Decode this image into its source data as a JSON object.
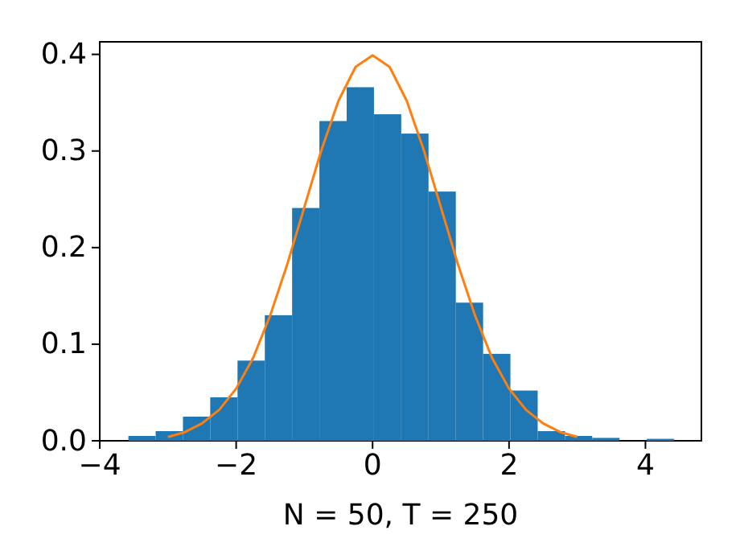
{
  "chart_data": {
    "type": "histogram",
    "xlabel": "N = 50, T = 250",
    "bins": [
      -3.58,
      -3.18,
      -2.78,
      -2.38,
      -1.98,
      -1.58,
      -1.18,
      -0.78,
      -0.38,
      0.02,
      0.42,
      0.82,
      1.22,
      1.62,
      2.02,
      2.42,
      2.82,
      3.22,
      3.62,
      4.02,
      4.42
    ],
    "values": [
      0.005,
      0.01,
      0.025,
      0.045,
      0.083,
      0.13,
      0.241,
      0.331,
      0.366,
      0.338,
      0.318,
      0.258,
      0.143,
      0.09,
      0.052,
      0.01,
      0.005,
      0.003,
      0,
      0.002
    ],
    "color": "#1f77b4",
    "series": [
      {
        "type": "line",
        "color": "#ff7f0e",
        "x": [
          -3,
          -2.75,
          -2.5,
          -2.25,
          -2,
          -1.75,
          -1.5,
          -1.25,
          -1,
          -0.75,
          -0.5,
          -0.25,
          0,
          0.25,
          0.5,
          0.75,
          1,
          1.25,
          1.5,
          1.75,
          2,
          2.25,
          2.5,
          2.75,
          3
        ],
        "values": [
          0.004,
          0.009,
          0.018,
          0.032,
          0.054,
          0.086,
          0.13,
          0.183,
          0.242,
          0.301,
          0.352,
          0.387,
          0.399,
          0.387,
          0.352,
          0.301,
          0.242,
          0.183,
          0.13,
          0.086,
          0.054,
          0.032,
          0.018,
          0.009,
          0.004
        ]
      }
    ],
    "xlim": [
      -4,
      4.82
    ],
    "ylim": [
      0,
      0.413
    ],
    "xticks": [
      {
        "value": -4,
        "label": "−4"
      },
      {
        "value": -2,
        "label": "−2"
      },
      0,
      2,
      4
    ],
    "yticks": [
      {
        "value": 0,
        "label": "0.0"
      },
      0.1,
      0.2,
      0.3,
      0.4
    ],
    "grid": false
  }
}
